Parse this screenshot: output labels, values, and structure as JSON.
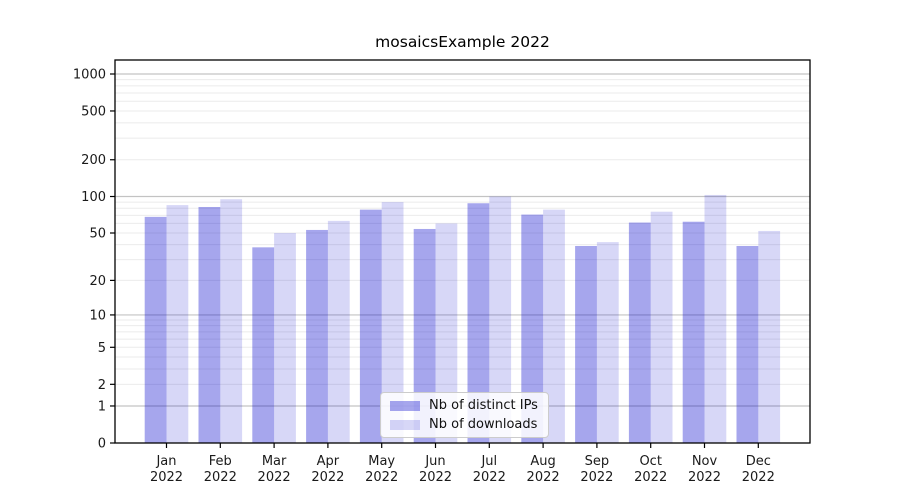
{
  "figure": {
    "title": "mosaicsExample 2022",
    "background": "#ffffff"
  },
  "chart_data": {
    "type": "bar",
    "title": "mosaicsExample 2022",
    "categories": [
      "Jan",
      "Feb",
      "Mar",
      "Apr",
      "May",
      "Jun",
      "Jul",
      "Aug",
      "Sep",
      "Oct",
      "Nov",
      "Dec"
    ],
    "category_year": "2022",
    "series": [
      {
        "name": "Nb of distinct IPs",
        "color": "rgba(0,0,204,0.35)",
        "values": [
          68,
          82,
          38,
          53,
          78,
          54,
          88,
          71,
          39,
          61,
          62,
          39
        ]
      },
      {
        "name": "Nb of downloads",
        "color": "rgba(0,0,204,0.155)",
        "values": [
          85,
          95,
          50,
          63,
          90,
          60,
          100,
          78,
          42,
          75,
          103,
          52
        ]
      }
    ],
    "xlabel": "",
    "ylabel": "",
    "y_axis": {
      "scale": "log1p",
      "ticks": [
        0,
        1,
        2,
        5,
        10,
        20,
        50,
        100,
        200,
        500,
        1000
      ],
      "tick_labels": [
        "0",
        "1",
        "2",
        "5",
        "10",
        "20",
        "50",
        "100",
        "200",
        "500",
        "1000"
      ],
      "major_grid": [
        1,
        10,
        100,
        1000
      ],
      "minor_grid": [
        2,
        3,
        4,
        5,
        6,
        7,
        8,
        9,
        20,
        30,
        40,
        50,
        60,
        70,
        80,
        90,
        200,
        300,
        400,
        500,
        600,
        700,
        800,
        900
      ],
      "ylim": [
        0,
        1300
      ]
    },
    "legend": {
      "position": "bottom-center",
      "entries": [
        "Nb of distinct IPs",
        "Nb of downloads"
      ]
    },
    "colors": {
      "grid_major": "#c3c3c3",
      "grid_minor": "#ebebeb",
      "axis": "#000000",
      "text": "#1a1a1a"
    },
    "grid": "on"
  }
}
